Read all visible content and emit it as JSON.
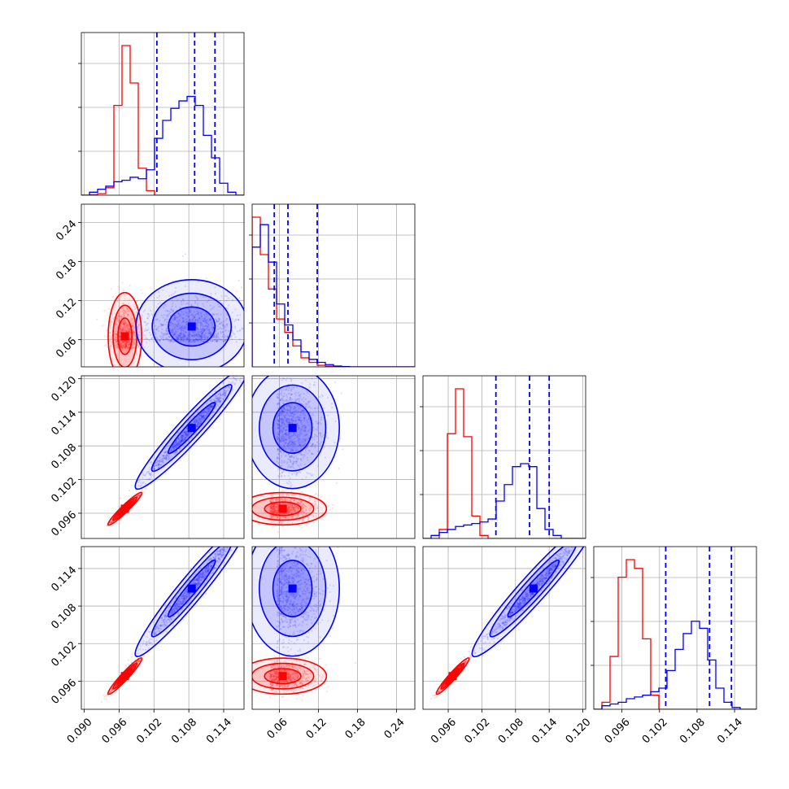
{
  "chart_data": {
    "type": "corner",
    "grid": true,
    "colors": {
      "red": "#ff0000",
      "blue": "#0000ff",
      "grid": "#b0b0b0"
    },
    "params": [
      {
        "lim": [
          0.0895,
          0.1175
        ],
        "ticks": [
          "0.090",
          "0.096",
          "0.102",
          "0.108",
          "0.114"
        ]
      },
      {
        "lim": [
          0.018,
          0.268
        ],
        "ticks": [
          "0.06",
          "0.12",
          "0.18",
          "0.24"
        ]
      },
      {
        "lim": [
          0.0915,
          0.1205
        ],
        "ticks": [
          "0.096",
          "0.102",
          "0.108",
          "0.114",
          "0.120"
        ]
      },
      {
        "lim": [
          0.0915,
          0.1175
        ],
        "ticks": [
          "0.096",
          "0.102",
          "0.108",
          "0.114"
        ]
      }
    ],
    "series": [
      {
        "color": "red",
        "mean": [
          0.097,
          0.065,
          0.0968,
          0.0968
        ],
        "sd": [
          0.0012,
          0.028,
          0.0012,
          0.0012
        ],
        "quantiles": []
      },
      {
        "color": "blue",
        "mean": [
          0.1085,
          0.08,
          0.1112,
          0.1108
        ],
        "sd": [
          0.004,
          0.03,
          0.0045,
          0.0045
        ],
        "quantiles": [
          [
            0.1025,
            0.109,
            0.1125
          ],
          [
            0.052,
            0.073,
            0.118
          ],
          [
            0.1045,
            0.1105,
            0.114
          ],
          [
            0.103,
            0.11,
            0.1135
          ]
        ]
      }
    ],
    "histograms": [
      {
        "red": [
          0,
          0.3,
          1,
          5,
          60,
          100,
          75,
          18,
          3,
          0,
          0,
          0,
          0,
          0,
          0,
          0,
          0,
          0,
          0,
          0
        ],
        "blue": [
          0,
          2,
          4,
          6,
          9,
          10,
          12,
          11,
          17,
          38,
          50,
          58,
          63,
          66,
          60,
          40,
          25,
          8,
          2,
          0
        ]
      },
      {
        "red": [
          100,
          75,
          52,
          32,
          23,
          14,
          6,
          3,
          1,
          0.5,
          0.2,
          0,
          0,
          0,
          0,
          0,
          0,
          0,
          0,
          0
        ],
        "blue": [
          80,
          95,
          70,
          42,
          28,
          18,
          10,
          5,
          3,
          1.5,
          0.5,
          0.2,
          0,
          0,
          0,
          0,
          0,
          0,
          0,
          0
        ]
      },
      {
        "red": [
          0,
          0,
          6,
          70,
          100,
          68,
          15,
          2,
          0,
          0,
          0,
          0,
          0,
          0,
          0,
          0,
          0,
          0,
          0,
          0
        ],
        "blue": [
          0,
          2,
          4,
          6,
          8,
          9,
          10,
          11,
          13,
          25,
          36,
          48,
          50,
          48,
          20,
          6,
          2,
          0,
          0,
          0
        ]
      },
      {
        "red": [
          0,
          4,
          30,
          75,
          85,
          80,
          40,
          8,
          0,
          0,
          0,
          0,
          0,
          0,
          0,
          0,
          0,
          0,
          0,
          0
        ],
        "blue": [
          0,
          2,
          3,
          4,
          6,
          7,
          8,
          10,
          12,
          22,
          34,
          43,
          50,
          46,
          28,
          12,
          4,
          1,
          0,
          0
        ]
      }
    ]
  }
}
